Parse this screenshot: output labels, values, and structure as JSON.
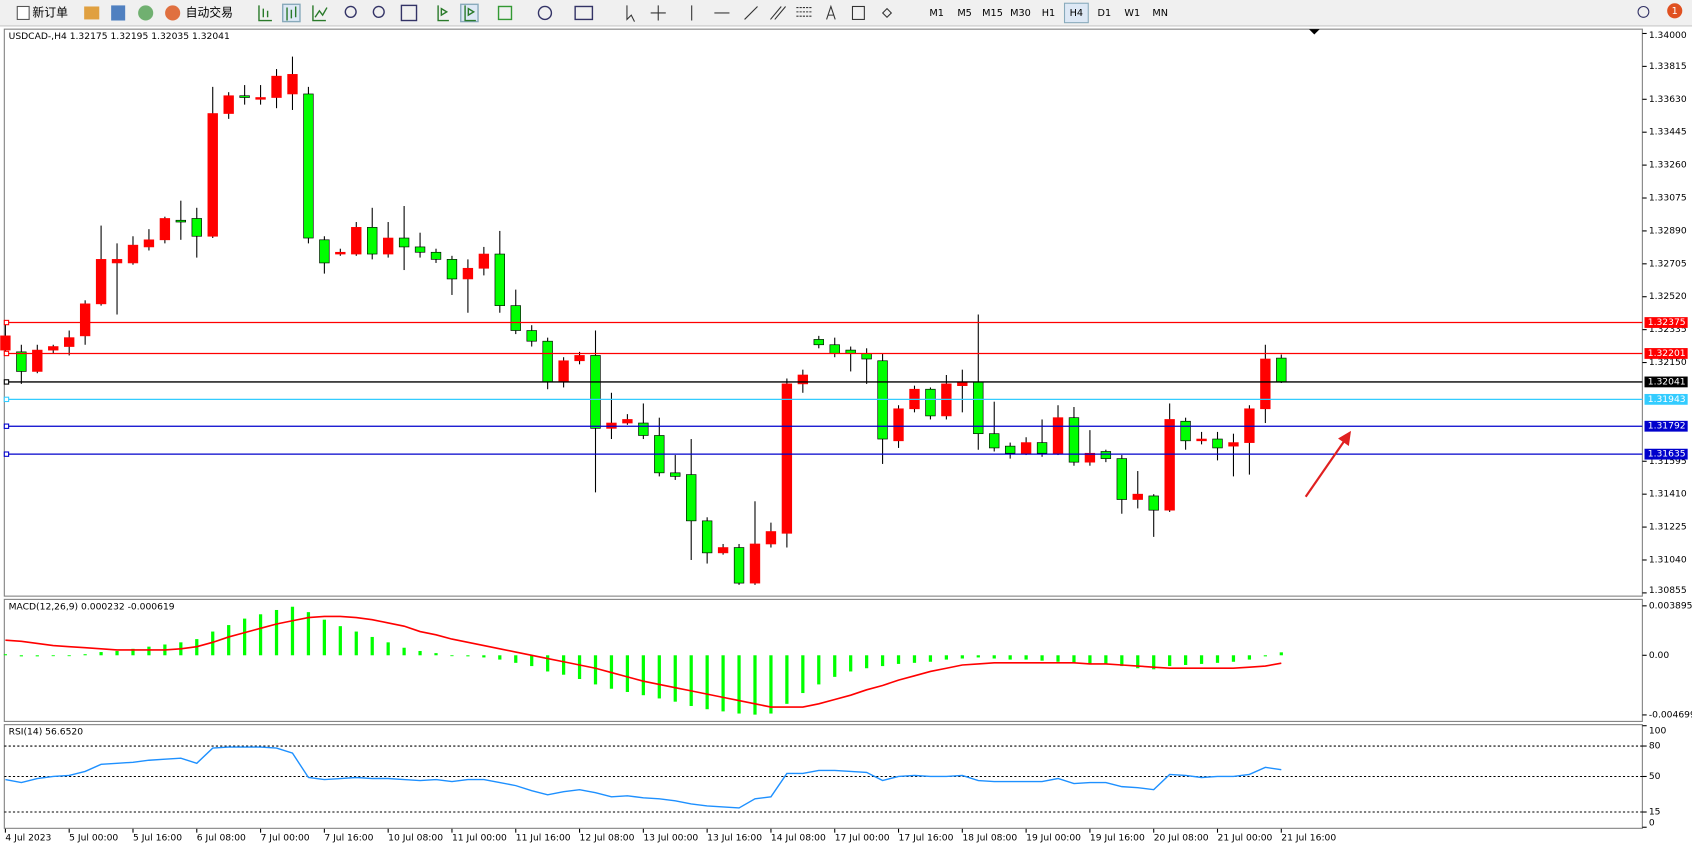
{
  "toolbar": {
    "buttons": [
      "新订单",
      "自动交易"
    ],
    "timeframes": [
      "M1",
      "M5",
      "M15",
      "M30",
      "H1",
      "H4",
      "D1",
      "W1",
      "MN"
    ],
    "active_timeframe": "H4",
    "notifications": 1
  },
  "chart_data": [
    {
      "type": "candlestick",
      "title": "USDCAD-,H4 1.32175 1.32195 1.32035 1.32041",
      "up_color": "#ff0000",
      "down_color": "#00ff00",
      "categories": [
        "4 Jul 2023",
        null,
        null,
        null,
        "5 Jul 00:00",
        null,
        null,
        null,
        "5 Jul 16:00",
        null,
        null,
        null,
        "6 Jul 08:00",
        null,
        null,
        null,
        "7 Jul 00:00",
        null,
        null,
        null,
        "7 Jul 16:00",
        null,
        null,
        null,
        "10 Jul 08:00",
        null,
        null,
        null,
        "11 Jul 00:00",
        null,
        null,
        null,
        "11 Jul 16:00",
        null,
        null,
        null,
        "12 Jul 08:00",
        null,
        null,
        null,
        "13 Jul 00:00",
        null,
        null,
        null,
        "13 Jul 16:00",
        null,
        null,
        null,
        "14 Jul 08:00",
        null,
        null,
        null,
        "17 Jul 00:00",
        null,
        null,
        null,
        "17 Jul 16:00",
        null,
        null,
        null,
        "18 Jul 08:00",
        null,
        null,
        null,
        "19 Jul 00:00",
        null,
        null,
        null,
        "19 Jul 16:00",
        null,
        null,
        null,
        "20 Jul 08:00",
        null,
        null,
        null,
        "21 Jul 00:00",
        null,
        null,
        null,
        "21 Jul 16:00"
      ],
      "open": [
        1.3222,
        1.3221,
        1.321,
        1.3222,
        1.3224,
        1.323,
        1.3248,
        1.3271,
        1.3271,
        1.328,
        1.3284,
        1.3295,
        1.3296,
        1.3286,
        1.3355,
        1.3365,
        1.3363,
        1.3364,
        1.3366,
        1.3366,
        1.3284,
        1.3276,
        1.3276,
        1.3291,
        1.3276,
        1.3285,
        1.328,
        1.3277,
        1.3273,
        1.3262,
        1.3268,
        1.3276,
        1.3247,
        1.3233,
        1.3227,
        1.3204,
        1.3216,
        1.3219,
        1.3178,
        1.3181,
        1.3181,
        1.3174,
        1.3153,
        1.3152,
        1.3126,
        1.3108,
        1.3111,
        1.3091,
        1.3113,
        1.3119,
        1.3203,
        1.3228,
        1.3225,
        1.3222,
        1.322,
        1.3216,
        1.3171,
        1.3189,
        1.32,
        1.3185,
        1.3202,
        1.3204,
        1.3175,
        1.3168,
        1.3164,
        1.317,
        1.3164,
        1.3184,
        1.3159,
        1.3165,
        1.3161,
        1.3138,
        1.314,
        1.3132,
        1.3182,
        1.3171,
        1.3172,
        1.3168,
        1.317,
        1.3189,
        1.32175
      ],
      "high": [
        1.3238,
        1.3225,
        1.3225,
        1.3225,
        1.3233,
        1.325,
        1.3292,
        1.3282,
        1.3286,
        1.329,
        1.3297,
        1.3306,
        1.3302,
        1.337,
        1.3367,
        1.3371,
        1.3371,
        1.338,
        1.3387,
        1.337,
        1.3286,
        1.3279,
        1.3294,
        1.3302,
        1.3294,
        1.3303,
        1.3288,
        1.3279,
        1.3275,
        1.3273,
        1.328,
        1.3289,
        1.3256,
        1.3236,
        1.3229,
        1.3218,
        1.3221,
        1.3233,
        1.3198,
        1.3186,
        1.3192,
        1.3184,
        1.3163,
        1.3172,
        1.3128,
        1.3113,
        1.3113,
        1.3137,
        1.3125,
        1.3206,
        1.3211,
        1.323,
        1.3229,
        1.3224,
        1.3223,
        1.322,
        1.3191,
        1.3202,
        1.3201,
        1.3208,
        1.3211,
        1.3242,
        1.3193,
        1.317,
        1.3173,
        1.3183,
        1.3191,
        1.319,
        1.3177,
        1.3166,
        1.3163,
        1.3154,
        1.3141,
        1.3192,
        1.3184,
        1.3176,
        1.3176,
        1.3175,
        1.3191,
        1.3225,
        1.32195
      ],
      "low": [
        1.322,
        1.3203,
        1.3209,
        1.322,
        1.3219,
        1.3225,
        1.3247,
        1.3242,
        1.327,
        1.3278,
        1.3282,
        1.3284,
        1.3274,
        1.3285,
        1.3352,
        1.336,
        1.336,
        1.3358,
        1.3357,
        1.3282,
        1.3265,
        1.3275,
        1.3275,
        1.3273,
        1.3274,
        1.3267,
        1.3274,
        1.3271,
        1.3253,
        1.3243,
        1.3264,
        1.3243,
        1.3231,
        1.3224,
        1.32,
        1.3201,
        1.3214,
        1.3142,
        1.3172,
        1.318,
        1.3172,
        1.3151,
        1.3149,
        1.3104,
        1.3102,
        1.3107,
        1.309,
        1.309,
        1.3111,
        1.3111,
        1.3198,
        1.3223,
        1.3218,
        1.321,
        1.3203,
        1.3158,
        1.3167,
        1.3187,
        1.3183,
        1.3183,
        1.3187,
        1.3166,
        1.3165,
        1.3161,
        1.3163,
        1.3162,
        1.3163,
        1.3157,
        1.3157,
        1.3159,
        1.313,
        1.3133,
        1.3117,
        1.3131,
        1.3166,
        1.3169,
        1.316,
        1.3151,
        1.3152,
        1.3181,
        1.32035
      ],
      "close": [
        1.323,
        1.321,
        1.3222,
        1.3224,
        1.3229,
        1.3248,
        1.3273,
        1.3273,
        1.3281,
        1.3284,
        1.3296,
        1.3294,
        1.3286,
        1.3355,
        1.3365,
        1.3364,
        1.3364,
        1.3376,
        1.3377,
        1.3285,
        1.3271,
        1.3277,
        1.3291,
        1.3276,
        1.3285,
        1.328,
        1.3277,
        1.3273,
        1.3262,
        1.3268,
        1.3276,
        1.3247,
        1.3233,
        1.3227,
        1.3204,
        1.3216,
        1.3219,
        1.3178,
        1.3181,
        1.3183,
        1.3174,
        1.3153,
        1.3151,
        1.3126,
        1.3108,
        1.3111,
        1.3091,
        1.3113,
        1.312,
        1.3203,
        1.3208,
        1.3225,
        1.322,
        1.322,
        1.3217,
        1.3172,
        1.3189,
        1.32,
        1.3185,
        1.3203,
        1.3204,
        1.3175,
        1.3167,
        1.3164,
        1.317,
        1.3164,
        1.3184,
        1.3159,
        1.3164,
        1.3161,
        1.3138,
        1.3141,
        1.3132,
        1.3183,
        1.3171,
        1.3172,
        1.3167,
        1.317,
        1.3189,
        1.3217,
        1.32041
      ],
      "ylim": [
        1.30855,
        1.34
      ],
      "yticks": [
        {
          "value": 1.34,
          "label": "1.34000"
        },
        {
          "value": 1.33815,
          "label": "1.33815"
        },
        {
          "value": 1.3363,
          "label": "1.33630"
        },
        {
          "value": 1.33445,
          "label": "1.33445"
        },
        {
          "value": 1.3326,
          "label": "1.33260"
        },
        {
          "value": 1.33075,
          "label": "1.33075"
        },
        {
          "value": 1.3289,
          "label": "1.32890"
        },
        {
          "value": 1.32705,
          "label": "1.32705"
        },
        {
          "value": 1.3252,
          "label": "1.32520"
        },
        {
          "value": 1.32335,
          "label": "1.32335"
        },
        {
          "value": 1.3215,
          "label": "1.32150"
        },
        {
          "value": 1.31595,
          "label": "1.31595"
        },
        {
          "value": 1.3141,
          "label": "1.31410"
        },
        {
          "value": 1.31225,
          "label": "1.31225"
        },
        {
          "value": 1.3104,
          "label": "1.31040"
        },
        {
          "value": 1.30855,
          "label": "1.30855"
        }
      ],
      "levels": [
        {
          "value": 1.32375,
          "color": "#ff0000"
        },
        {
          "value": 1.32201,
          "color": "#ff0000"
        },
        {
          "value": 1.32041,
          "color": "#000000"
        },
        {
          "value": 1.31943,
          "color": "#33ccff"
        },
        {
          "value": 1.31792,
          "color": "#0000cc"
        },
        {
          "value": 1.31635,
          "color": "#0000cc"
        }
      ]
    },
    {
      "type": "macd",
      "title": "MACD(12,26,9) 0.000232 -0.000619",
      "histogram": {
        "color": "#00ff00",
        "values": [
          8.5e-05,
          -8.5e-05,
          -8.5e-05,
          0,
          0,
          8.5e-05,
          0.000255,
          0.00034,
          0.00051,
          0.00068,
          0.00085,
          0.00102,
          0.001275,
          0.00187,
          0.00238,
          0.00289,
          0.00323,
          0.00357,
          0.003825,
          0.0034,
          0.002805,
          0.002295,
          0.00187,
          0.001445,
          0.00102,
          0.000595,
          0.00034,
          0.00017,
          0,
          -8.5e-05,
          -0.00017,
          -0.00034,
          -0.000595,
          -0.00085,
          -0.001275,
          -0.00153,
          -0.00187,
          -0.002295,
          -0.002635,
          -0.00289,
          -0.003145,
          -0.0034,
          -0.003655,
          -0.003995,
          -0.00425,
          -0.00442,
          -0.00459,
          -0.004675,
          -0.00459,
          -0.003825,
          -0.002975,
          -0.002295,
          -0.0017,
          -0.001275,
          -0.00102,
          -0.00085,
          -0.00068,
          -0.000595,
          -0.00051,
          -0.00034,
          -0.000255,
          -0.00017,
          -0.000255,
          -0.00034,
          -0.00034,
          -0.000425,
          -0.00051,
          -0.000595,
          -0.00068,
          -0.00068,
          -0.00085,
          -0.00102,
          -0.001105,
          -0.00085,
          -0.000765,
          -0.00068,
          -0.000595,
          -0.00051,
          -0.00034,
          -8.5e-05,
          0.000232
        ]
      },
      "signal": {
        "color": "#ff0000",
        "values": [
          0.00119,
          0.001105,
          0.000935,
          0.000765,
          0.00068,
          0.000595,
          0.00051,
          0.000425,
          0.000425,
          0.000425,
          0.000425,
          0.00051,
          0.00068,
          0.00102,
          0.001445,
          0.001785,
          0.002125,
          0.002465,
          0.00272,
          0.002975,
          0.00306,
          0.00306,
          0.002975,
          0.002805,
          0.00255,
          0.002295,
          0.00187,
          0.001615,
          0.001275,
          0.00102,
          0.000765,
          0.00051,
          0.000255,
          0,
          -0.000255,
          -0.00051,
          -0.000765,
          -0.00102,
          -0.00136,
          -0.0017,
          -0.00204,
          -0.002295,
          -0.00255,
          -0.002805,
          -0.00306,
          -0.003315,
          -0.00357,
          -0.003825,
          -0.00408,
          -0.00408,
          -0.00408,
          -0.003825,
          -0.003485,
          -0.003145,
          -0.00272,
          -0.00238,
          -0.001955,
          -0.001615,
          -0.001275,
          -0.00102,
          -0.000765,
          -0.00068,
          -0.000595,
          -0.000595,
          -0.000595,
          -0.000595,
          -0.000595,
          -0.000595,
          -0.00068,
          -0.00068,
          -0.000765,
          -0.00085,
          -0.000935,
          -0.00102,
          -0.00102,
          -0.00102,
          -0.00102,
          -0.00102,
          -0.000935,
          -0.00085,
          -0.000619
        ]
      },
      "ylim": [
        -0.004699,
        0.003895
      ],
      "yticks": [
        0.003895,
        {
          "value": 0,
          "label": "0.00"
        },
        -0.004699
      ]
    },
    {
      "type": "line",
      "title": "RSI(14) 56.6520",
      "color": "#1e90ff",
      "values": [
        47,
        44,
        48,
        50,
        51,
        55,
        62,
        63,
        64,
        66,
        67,
        68,
        63,
        78,
        79,
        79,
        79,
        78,
        73,
        49,
        47,
        48,
        49,
        48,
        48,
        47,
        46,
        47,
        45,
        47,
        47,
        44,
        41,
        36,
        32,
        35,
        37,
        34,
        30,
        31,
        29,
        28,
        26,
        23,
        21,
        20,
        19,
        28,
        30,
        53,
        53,
        56,
        56,
        55,
        54,
        46,
        50,
        51,
        50,
        50,
        51,
        46,
        45,
        45,
        45,
        45,
        48,
        43,
        44,
        44,
        40,
        39,
        37,
        52,
        51,
        49,
        50,
        50,
        52,
        59,
        56.652
      ],
      "ylim": [
        0,
        100
      ],
      "yticks": [
        100,
        80,
        50,
        15,
        0
      ],
      "levels": [
        80,
        50,
        15
      ]
    }
  ]
}
